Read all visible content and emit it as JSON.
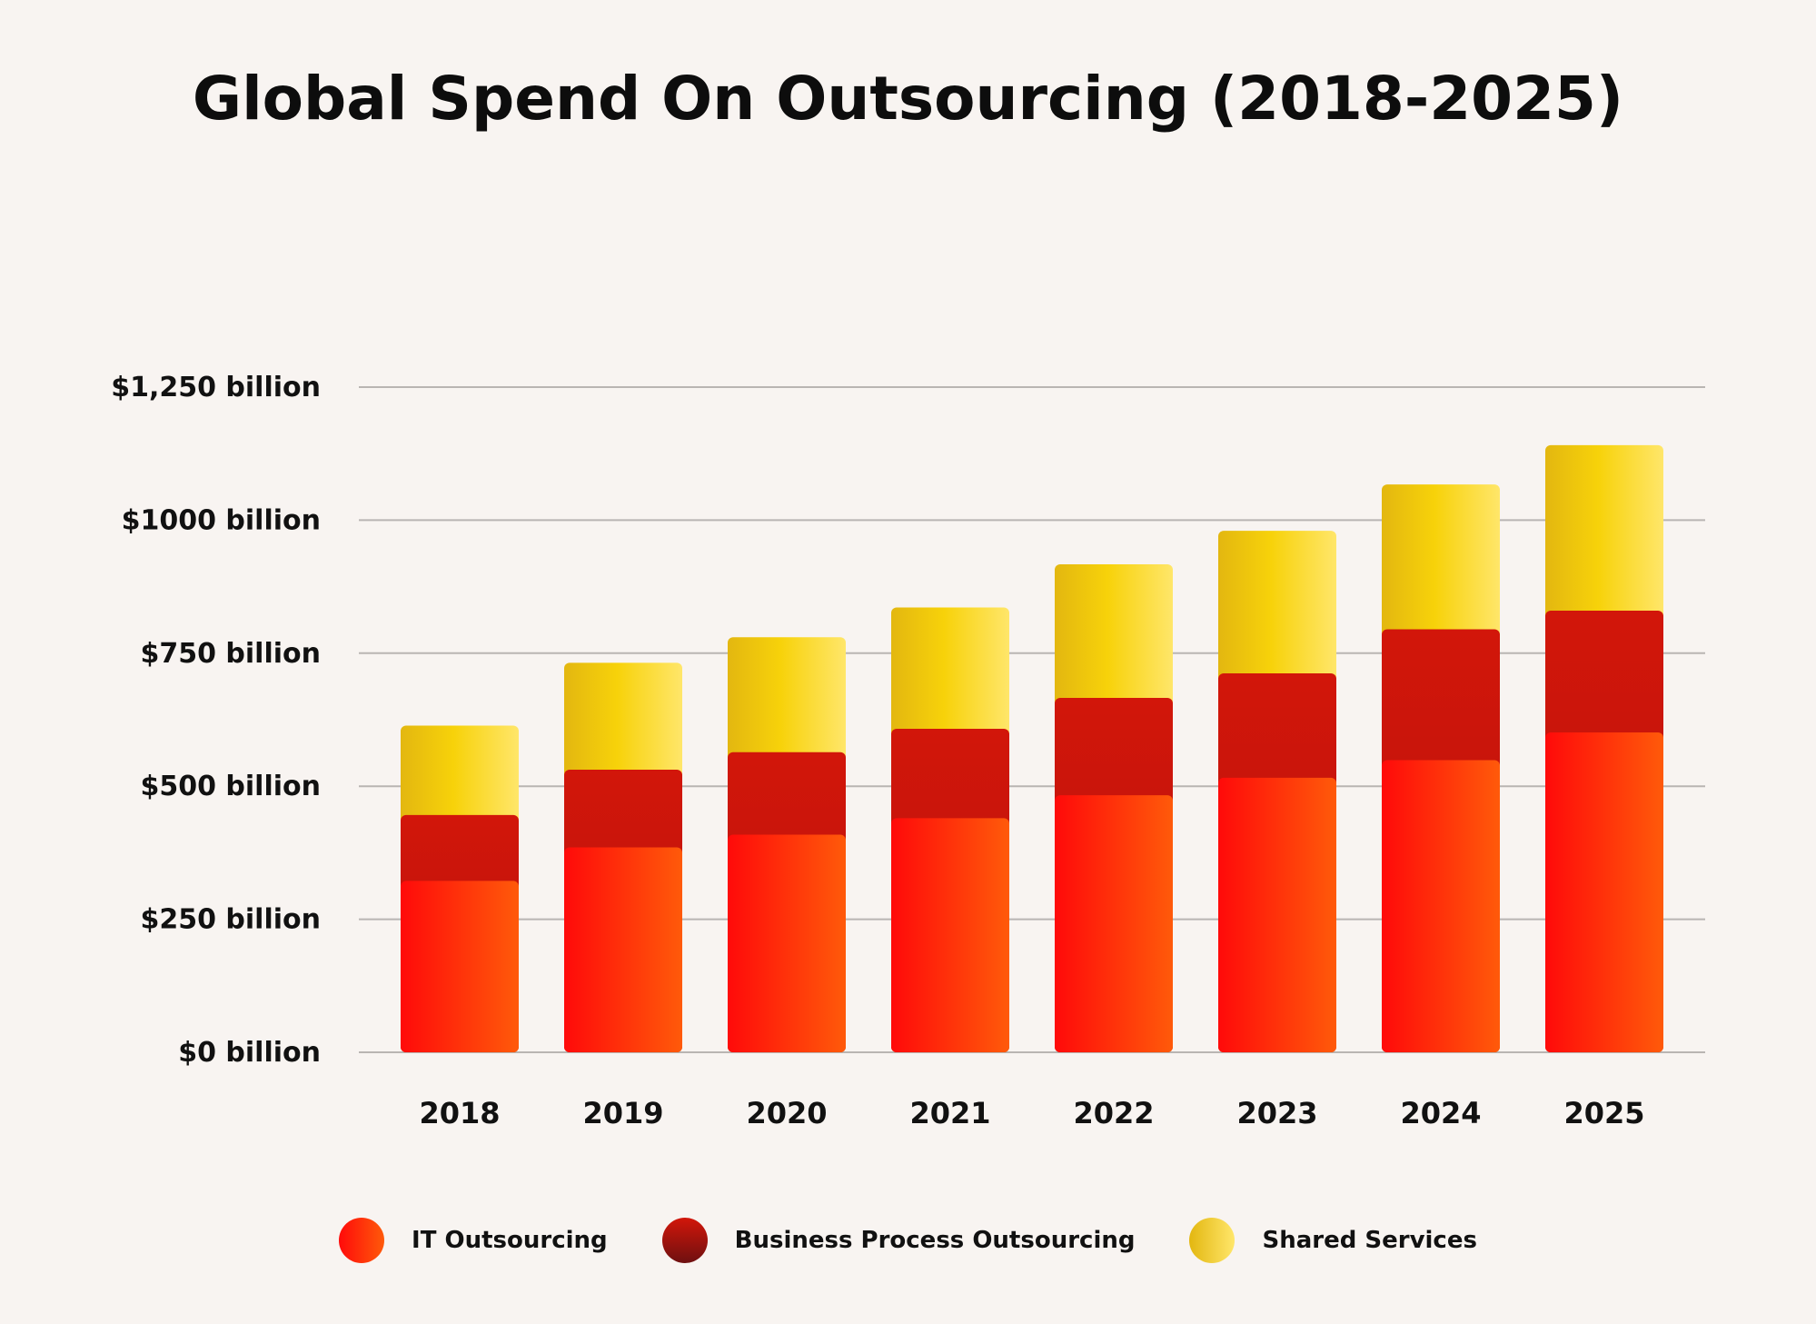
{
  "chart_data": {
    "type": "bar",
    "stacked": true,
    "title": "Global Spend On Outsourcing (2018-2025)",
    "categories": [
      "2018",
      "2019",
      "2020",
      "2021",
      "2022",
      "2023",
      "2024",
      "2025"
    ],
    "series": [
      {
        "name": "IT Outsourcing",
        "values": [
          322,
          385,
          409,
          440,
          483,
          516,
          549,
          601
        ],
        "colors": [
          "#ff0a0a",
          "#ff5a0a"
        ]
      },
      {
        "name": "Business Process Outsourcing",
        "values": [
          124,
          146,
          155,
          168,
          183,
          196,
          246,
          229
        ],
        "colors": [
          "#d2160a",
          "#b5120e"
        ]
      },
      {
        "name": "Shared Services",
        "values": [
          168,
          201,
          216,
          228,
          251,
          268,
          272,
          311
        ],
        "colors": [
          "#e3b710",
          "#f7d20a",
          "#ffe66a"
        ]
      }
    ],
    "ytick_labels": [
      "$0 billion",
      "$250 billion",
      "$500 billion",
      "$750 billion",
      "$1000 billion",
      "$1,250 billion"
    ],
    "yticks": [
      0,
      250,
      500,
      750,
      1000,
      1250
    ],
    "ylim": [
      0,
      1250
    ],
    "xlabel": "",
    "ylabel": "",
    "grid": true,
    "legend": "bottom"
  }
}
